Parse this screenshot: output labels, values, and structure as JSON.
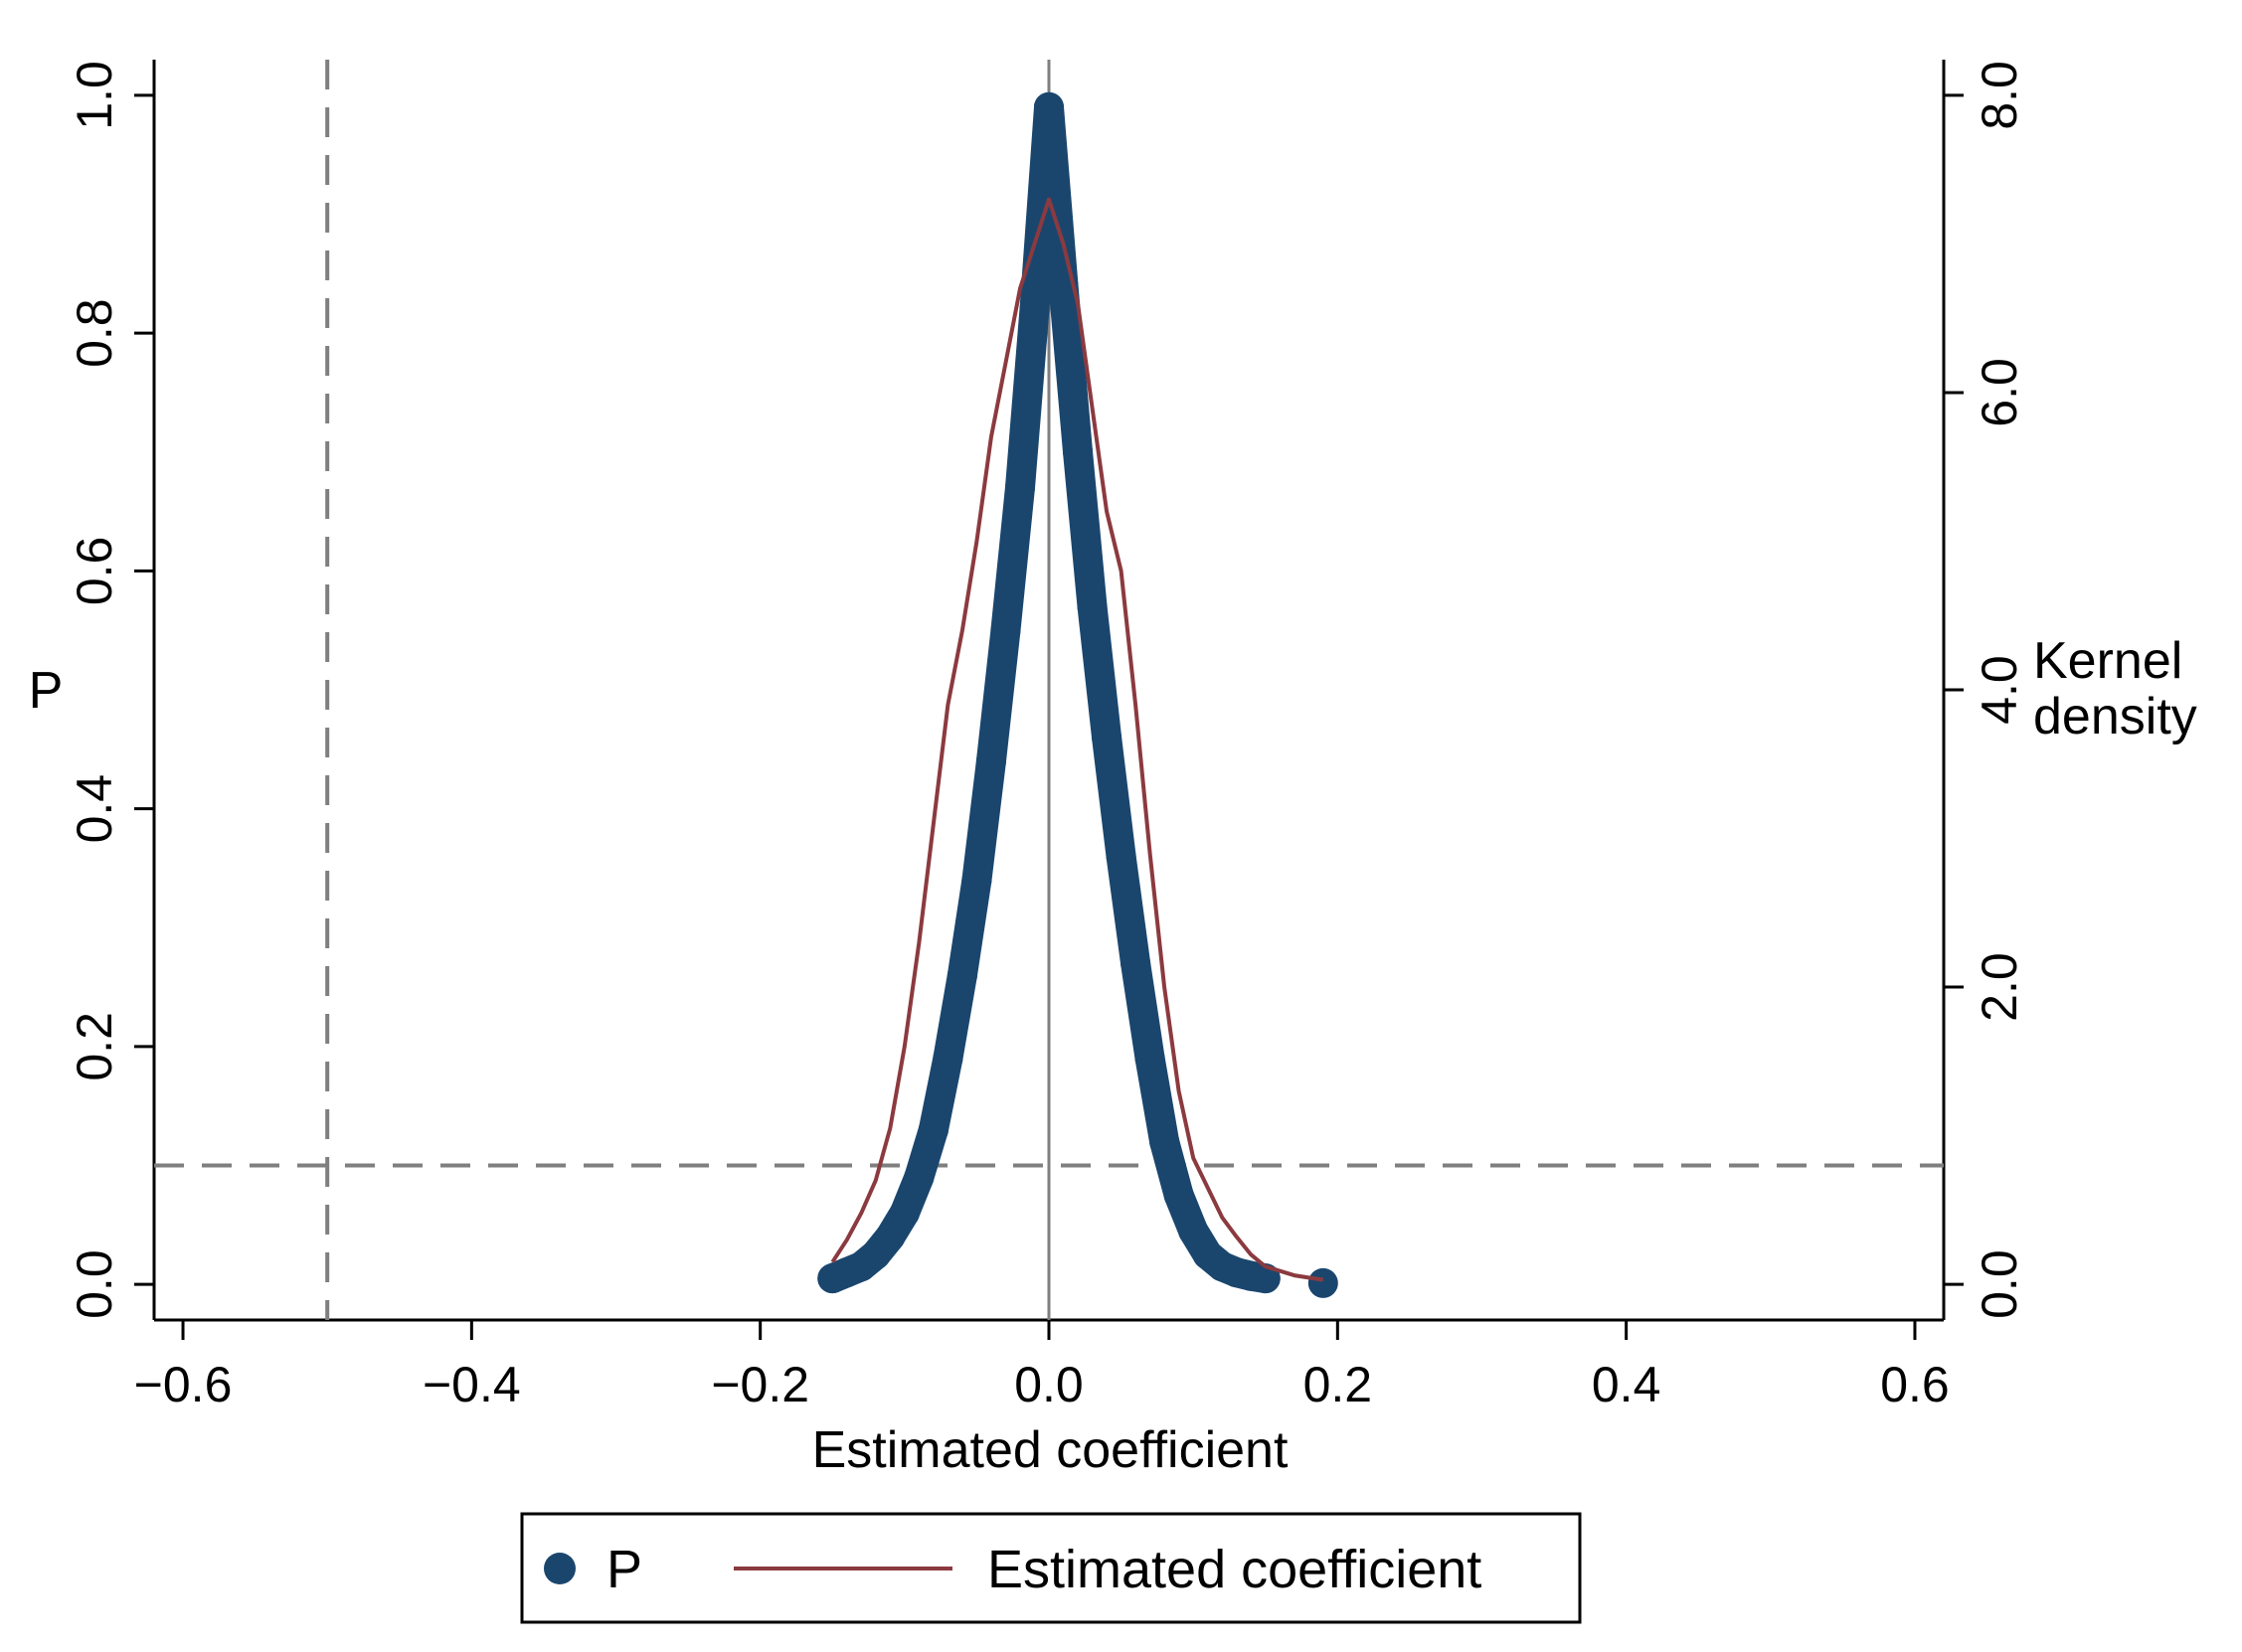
{
  "chart_data": {
    "type": "scatter",
    "xlabel": "Estimated coefficient",
    "ylabel_left": "P",
    "ylabel_right_line1": "Kernel",
    "ylabel_right_line2": "density",
    "xlim": [
      -0.62,
      0.62
    ],
    "ylim_left": [
      -0.03,
      1.03
    ],
    "ylim_right": [
      -0.24,
      8.24
    ],
    "x_ticks": [
      -0.6,
      -0.4,
      -0.2,
      0.0,
      0.2,
      0.4,
      0.6
    ],
    "x_tick_labels": [
      "−0.6",
      "−0.4",
      "−0.2",
      "0.0",
      "0.2",
      "0.4",
      "0.6"
    ],
    "y_left_ticks": [
      0.0,
      0.2,
      0.4,
      0.6,
      0.8,
      1.0
    ],
    "y_left_tick_labels": [
      "0.0",
      "0.2",
      "0.4",
      "0.6",
      "0.8",
      "1.0"
    ],
    "y_right_ticks": [
      0.0,
      2.0,
      4.0,
      6.0,
      8.0
    ],
    "y_right_tick_labels": [
      "0.0",
      "2.0",
      "4.0",
      "6.0",
      "8.0"
    ],
    "reference_lines": {
      "vertical_dashed_x": -0.5,
      "vertical_solid_x": 0.0,
      "horizontal_dashed_y": 0.1
    },
    "grid": false,
    "legend_position": "bottom",
    "legend": [
      "P",
      "Estimated coefficient"
    ],
    "series": [
      {
        "name": "P",
        "kind": "scatter",
        "axis": "left",
        "color": "#1a466e",
        "points": [
          [
            -0.15,
            0.005
          ],
          [
            -0.14,
            0.01
          ],
          [
            -0.13,
            0.015
          ],
          [
            -0.12,
            0.025
          ],
          [
            -0.11,
            0.04
          ],
          [
            -0.1,
            0.06
          ],
          [
            -0.09,
            0.09
          ],
          [
            -0.08,
            0.13
          ],
          [
            -0.07,
            0.19
          ],
          [
            -0.06,
            0.26
          ],
          [
            -0.05,
            0.34
          ],
          [
            -0.04,
            0.44
          ],
          [
            -0.03,
            0.55
          ],
          [
            -0.02,
            0.67
          ],
          [
            -0.01,
            0.82
          ],
          [
            0.0,
            0.99
          ],
          [
            0.01,
            0.84
          ],
          [
            0.02,
            0.7
          ],
          [
            0.03,
            0.57
          ],
          [
            0.04,
            0.46
          ],
          [
            0.05,
            0.36
          ],
          [
            0.06,
            0.27
          ],
          [
            0.07,
            0.19
          ],
          [
            0.08,
            0.12
          ],
          [
            0.09,
            0.075
          ],
          [
            0.1,
            0.045
          ],
          [
            0.11,
            0.025
          ],
          [
            0.12,
            0.015
          ],
          [
            0.13,
            0.01
          ],
          [
            0.14,
            0.007
          ],
          [
            0.15,
            0.005
          ],
          [
            0.19,
            0.001
          ]
        ]
      },
      {
        "name": "Estimated coefficient",
        "kind": "line",
        "axis": "right",
        "color": "#8b3a3f",
        "points": [
          [
            -0.15,
            0.15
          ],
          [
            -0.14,
            0.3
          ],
          [
            -0.13,
            0.48
          ],
          [
            -0.12,
            0.7
          ],
          [
            -0.11,
            1.05
          ],
          [
            -0.1,
            1.6
          ],
          [
            -0.09,
            2.3
          ],
          [
            -0.08,
            3.1
          ],
          [
            -0.07,
            3.9
          ],
          [
            -0.06,
            4.4
          ],
          [
            -0.05,
            5.0
          ],
          [
            -0.04,
            5.7
          ],
          [
            -0.03,
            6.2
          ],
          [
            -0.02,
            6.7
          ],
          [
            -0.01,
            7.0
          ],
          [
            0.0,
            7.3
          ],
          [
            0.01,
            7.0
          ],
          [
            0.02,
            6.6
          ],
          [
            0.03,
            5.9
          ],
          [
            0.04,
            5.2
          ],
          [
            0.05,
            4.8
          ],
          [
            0.06,
            3.9
          ],
          [
            0.07,
            2.9
          ],
          [
            0.08,
            2.0
          ],
          [
            0.09,
            1.3
          ],
          [
            0.1,
            0.85
          ],
          [
            0.11,
            0.65
          ],
          [
            0.12,
            0.45
          ],
          [
            0.13,
            0.32
          ],
          [
            0.14,
            0.2
          ],
          [
            0.15,
            0.12
          ],
          [
            0.17,
            0.06
          ],
          [
            0.19,
            0.03
          ]
        ]
      }
    ]
  }
}
